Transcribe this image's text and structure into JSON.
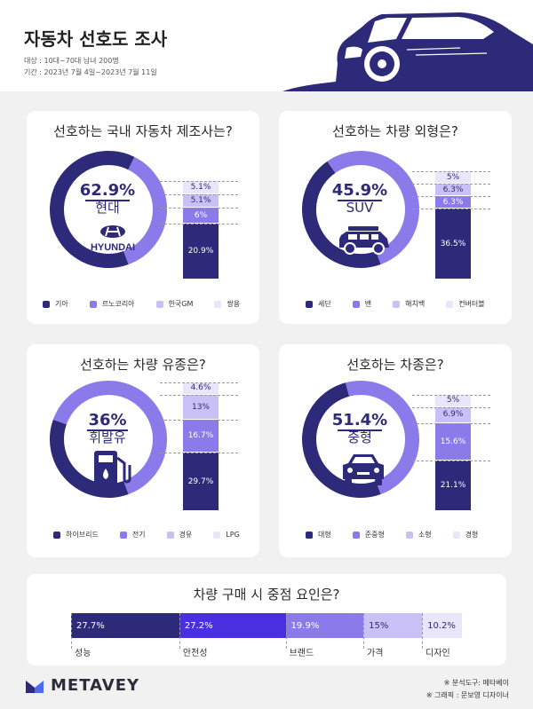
{
  "header": {
    "title": "자동차 선호도 조사",
    "target": "대상 : 10대~70대 남녀 200명",
    "period": "기간 : 2023년 7월 4일~2023년 7월 11일"
  },
  "colors": {
    "dark": "#2e2a7a",
    "mid": "#8b7bea",
    "light": "#c9c1f5",
    "pale": "#e9e6fb"
  },
  "chart_data": [
    {
      "type": "bar",
      "title": "선호하는 국내 자동차 제조사는?",
      "highlight_value": "62.9%",
      "highlight_label": "현대",
      "logo": "HYUNDAI",
      "categories": [
        "기아",
        "르노코리아",
        "한국GM",
        "쌍용"
      ],
      "values": [
        20.9,
        6,
        5.1,
        5.1
      ],
      "value_labels": [
        "20.9%",
        "6%",
        "5.1%",
        "5.1%"
      ]
    },
    {
      "type": "bar",
      "title": "선호하는 차량 외형은?",
      "highlight_value": "45.9%",
      "highlight_label": "SUV",
      "icon": "suv-icon",
      "categories": [
        "세단",
        "밴",
        "해치백",
        "컨버터블"
      ],
      "values": [
        36.5,
        6.3,
        6.3,
        5
      ],
      "value_labels": [
        "36.5%",
        "6.3%",
        "6.3%",
        "5%"
      ]
    },
    {
      "type": "bar",
      "title": "선호하는 차량 유종은?",
      "highlight_value": "36%",
      "highlight_label": "휘발유",
      "icon": "fuel-pump-icon",
      "categories": [
        "하이브리드",
        "전기",
        "경유",
        "LPG"
      ],
      "values": [
        29.7,
        16.7,
        13,
        4.6
      ],
      "value_labels": [
        "29.7%",
        "16.7%",
        "13%",
        "4.6%"
      ]
    },
    {
      "type": "bar",
      "title": "선호하는 차종은?",
      "highlight_value": "51.4%",
      "highlight_label": "중형",
      "icon": "car-front-icon",
      "categories": [
        "대형",
        "준중형",
        "소형",
        "경형"
      ],
      "values": [
        21.1,
        15.6,
        6.9,
        5
      ],
      "value_labels": [
        "21.1%",
        "15.6%",
        "6.9%",
        "5%"
      ]
    },
    {
      "type": "bar",
      "title": "차량 구매 시 중점 요인은?",
      "categories": [
        "성능",
        "안전성",
        "브랜드",
        "가격",
        "디자인"
      ],
      "values": [
        27.7,
        27.2,
        19.9,
        15,
        10.2
      ],
      "value_labels": [
        "27.7%",
        "27.2%",
        "19.9%",
        "15%",
        "10.2%"
      ]
    }
  ],
  "footer": {
    "brand": "METAVEY",
    "credit_tool": "※ 분석도구: 메타베이",
    "credit_graphic": "※ 그래픽 : 문보영 디자이너"
  }
}
